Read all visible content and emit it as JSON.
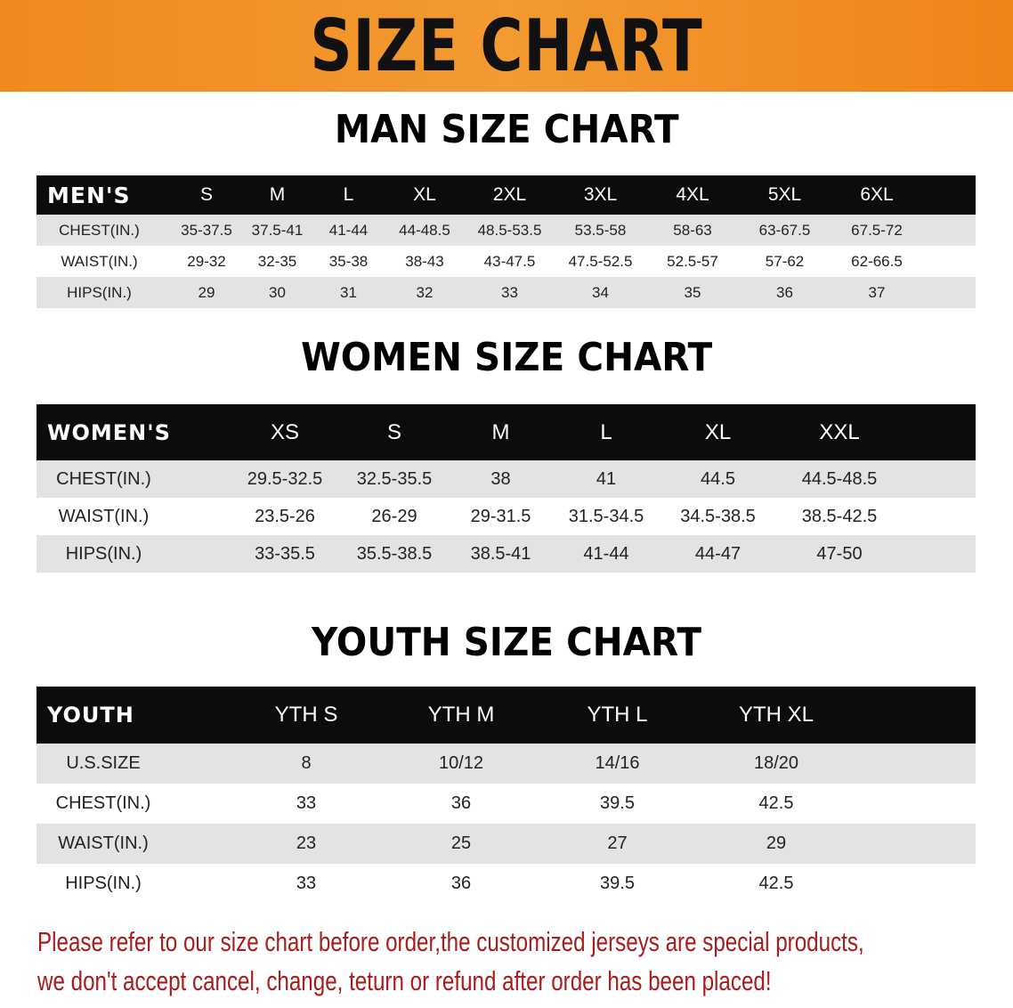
{
  "banner_title": "SIZE CHART",
  "men": {
    "title": "MAN SIZE CHART",
    "header": [
      "MEN'S",
      "S",
      "M",
      "L",
      "XL",
      "2XL",
      "3XL",
      "4XL",
      "5XL",
      "6XL"
    ],
    "rows": [
      [
        "CHEST(IN.)",
        "35-37.5",
        "37.5-41",
        "41-44",
        "44-48.5",
        "48.5-53.5",
        "53.5-58",
        "58-63",
        "63-67.5",
        "67.5-72"
      ],
      [
        "WAIST(IN.)",
        "29-32",
        "32-35",
        "35-38",
        "38-43",
        "43-47.5",
        "47.5-52.5",
        "52.5-57",
        "57-62",
        "62-66.5"
      ],
      [
        "HIPS(IN.)",
        "29",
        "30",
        "31",
        "32",
        "33",
        "34",
        "35",
        "36",
        "37"
      ]
    ]
  },
  "women": {
    "title": "WOMEN SIZE CHART",
    "header": [
      "WOMEN'S",
      "XS",
      "S",
      "M",
      "L",
      "XL",
      "XXL"
    ],
    "rows": [
      [
        "CHEST(IN.)",
        "29.5-32.5",
        "32.5-35.5",
        "38",
        "41",
        "44.5",
        "44.5-48.5"
      ],
      [
        "WAIST(IN.)",
        "23.5-26",
        "26-29",
        "29-31.5",
        "31.5-34.5",
        "34.5-38.5",
        "38.5-42.5"
      ],
      [
        "HIPS(IN.)",
        "33-35.5",
        "35.5-38.5",
        "38.5-41",
        "41-44",
        "44-47",
        "47-50"
      ]
    ]
  },
  "youth": {
    "title": "YOUTH SIZE CHART",
    "header": [
      "YOUTH",
      "YTH S",
      "YTH M",
      "YTH L",
      "YTH XL"
    ],
    "rows": [
      [
        "U.S.SIZE",
        "8",
        "10/12",
        "14/16",
        "18/20"
      ],
      [
        "CHEST(IN.)",
        "33",
        "36",
        "39.5",
        "42.5"
      ],
      [
        "WAIST(IN.)",
        "23",
        "25",
        "27",
        "29"
      ],
      [
        "HIPS(IN.)",
        "33",
        "36",
        "39.5",
        "42.5"
      ]
    ]
  },
  "notice": {
    "line1": "Please refer to our size chart before order,the customized jerseys are special products,",
    "line2": "we don't accept cancel, change, teturn or refund after order has been placed!"
  },
  "colors": {
    "banner": "#f08a1e",
    "header_bg": "#0c0c0c",
    "row_alt": "#e3e3e3",
    "notice": "#a81c1c"
  }
}
